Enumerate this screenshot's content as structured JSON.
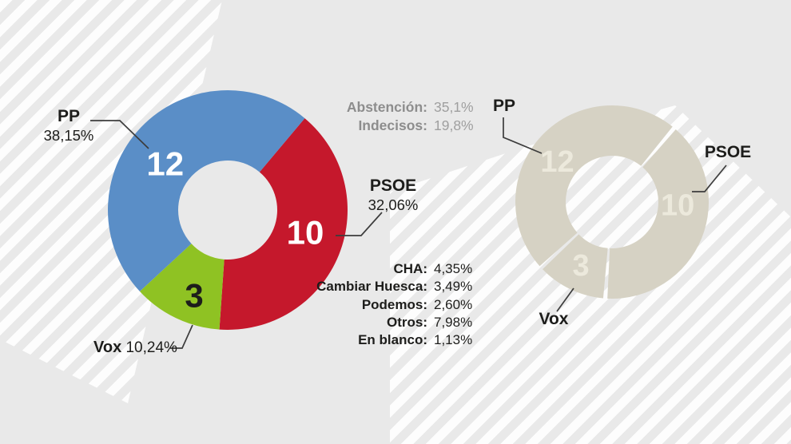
{
  "background": {
    "base_color": "#e9e9e9",
    "stripe_color": "#ffffff"
  },
  "center_stats": [
    {
      "label": "Abstención:",
      "value": "35,1%"
    },
    {
      "label": "Indecisos:",
      "value": "19,8%"
    }
  ],
  "minor_parties": [
    {
      "label": "CHA:",
      "value": "4,35%"
    },
    {
      "label": "Cambiar Huesca:",
      "value": "3,49%"
    },
    {
      "label": "Podemos:",
      "value": "2,60%"
    },
    {
      "label": "Otros:",
      "value": "7,98%"
    },
    {
      "label": "En blanco:",
      "value": "1,13%"
    }
  ],
  "chart_data": [
    {
      "type": "pie",
      "donut": true,
      "name": "seats-donut-colored",
      "start_angle_deg": 40,
      "draw_order": [
        1,
        2,
        0
      ],
      "segment_gap_deg": 0,
      "segments": [
        {
          "party": "PP",
          "seats": 12,
          "vote_pct": "38,15%",
          "color": "#5a8ec7",
          "label_color": "#ffffff",
          "label_angle_deg": 306.6,
          "label_radius_frac": 0.65
        },
        {
          "party": "PSOE",
          "seats": 10,
          "vote_pct": "32,06%",
          "color": "#c5182c",
          "label_color": "#ffffff",
          "label_angle_deg": 106,
          "label_radius_frac": 0.673
        },
        {
          "party": "Vox",
          "seats": 3,
          "vote_pct": "10,24%",
          "color": "#8fc223",
          "label_color": "#1d1d1b",
          "label_angle_deg": 201.4,
          "label_radius_frac": 0.767
        }
      ]
    },
    {
      "type": "pie",
      "donut": true,
      "name": "seats-donut-gray",
      "start_angle_deg": 40,
      "draw_order": [
        1,
        2,
        0
      ],
      "segment_gap_deg": 2.5,
      "segments": [
        {
          "party": "PP",
          "seats": 12,
          "color": "#d6d2c4",
          "label_color": "#ece9dc",
          "label_angle_deg": 306,
          "label_radius_frac": 0.7
        },
        {
          "party": "PSOE",
          "seats": 10,
          "color": "#d6d2c4",
          "label_color": "#ece9dc",
          "label_angle_deg": 93,
          "label_radius_frac": 0.68
        },
        {
          "party": "Vox",
          "seats": 3,
          "color": "#d6d2c4",
          "label_color": "#ece9dc",
          "label_angle_deg": 206,
          "label_radius_frac": 0.735
        }
      ]
    }
  ]
}
